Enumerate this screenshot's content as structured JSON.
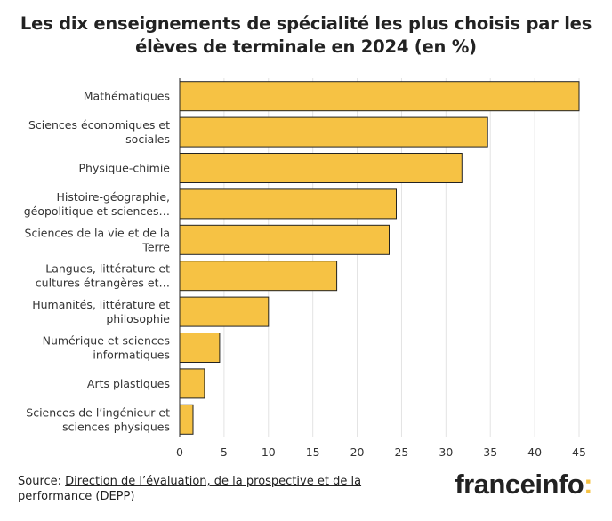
{
  "title": "Les dix enseignements de spécialité les plus choisis par les élèves de terminale en 2024 (en %)",
  "chart_data": {
    "type": "bar",
    "orientation": "horizontal",
    "title": "Les dix enseignements de spécialité les plus choisis par les élèves de terminale en 2024 (en %)",
    "categories": [
      [
        "Mathématiques"
      ],
      [
        "Sciences économiques et",
        "sociales"
      ],
      [
        "Physique-chimie"
      ],
      [
        "Histoire-géographie,",
        "géopolitique et sciences…"
      ],
      [
        "Sciences de la vie et de la",
        "Terre"
      ],
      [
        "Langues, littérature et",
        "cultures étrangères et…"
      ],
      [
        "Humanités, littérature et",
        "philosophie"
      ],
      [
        "Numérique et sciences",
        "informatiques"
      ],
      [
        "Arts plastiques"
      ],
      [
        "Sciences de l’ingénieur et",
        "sciences physiques"
      ]
    ],
    "values": [
      45,
      34.7,
      31.8,
      24.4,
      23.6,
      17.7,
      10,
      4.5,
      2.8,
      1.5
    ],
    "xlim": [
      0,
      45
    ],
    "xticks": [
      0,
      5,
      10,
      15,
      20,
      25,
      30,
      35,
      40,
      45
    ],
    "xlabel": "",
    "ylabel": "",
    "bar_color": "#f6c244"
  },
  "source": {
    "prefix": "Source: ",
    "link_text": "Direction de l’évaluation, de la prospective et de la performance (DEPP)"
  },
  "logo": {
    "text": "franceinfo",
    "colon": ":"
  }
}
